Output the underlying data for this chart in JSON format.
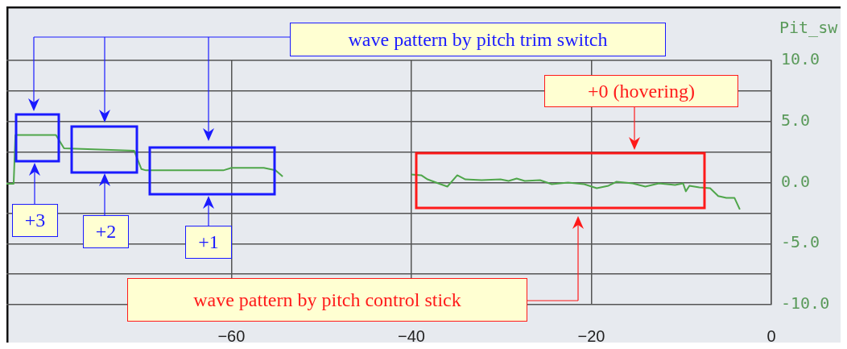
{
  "chart_data": {
    "type": "line",
    "ylabel": "Pit_sw",
    "x": [
      -85.0,
      -84.2,
      -84.0,
      -79.5,
      -78.6,
      -70.8,
      -70.0,
      -69.5,
      -60.9,
      -60.0,
      -56.4,
      -55.1,
      -54.3,
      -47,
      -40.0,
      -38.9,
      -38.2,
      -37.0,
      -36.0,
      -34.9,
      -34.0,
      -32.2,
      -30.1,
      -29.2,
      -28.3,
      -27.4,
      -25.7,
      -24.4,
      -22.6,
      -20.8,
      -19.4,
      -18.1,
      -17.2,
      -15.4,
      -14.0,
      -12.5,
      -10.7,
      -9.8,
      -9.5,
      -9.1,
      -8.0,
      -6.8,
      -5.9,
      -5.0,
      -4.1,
      -3.5
    ],
    "series": [
      {
        "color": "#4fa64a",
        "values": [
          -0.1,
          -0.1,
          3.9,
          3.9,
          2.8,
          2.6,
          1.1,
          1.0,
          1.0,
          1.2,
          1.2,
          1.0,
          0.5,
          null,
          0.66,
          0.6,
          0.26,
          -0.07,
          -0.33,
          0.6,
          0.26,
          0.2,
          0.26,
          0.13,
          0.33,
          0.13,
          0.2,
          -0.13,
          0,
          -0.13,
          -0.46,
          -0.26,
          0.07,
          -0.07,
          -0.33,
          -0.07,
          -0.2,
          -0.07,
          -0.72,
          -0.26,
          -0.4,
          -0.46,
          -1.1,
          -1.25,
          -1.25,
          -2.2
        ]
      }
    ],
    "xlim": [
      -85,
      0
    ],
    "xticks": [
      -60,
      -40,
      -20,
      0
    ],
    "ylim": [
      -10,
      10
    ],
    "yticks": [
      {
        "value": 10,
        "label": "10.0"
      },
      {
        "value": 7.5,
        "label": null
      },
      {
        "value": 5,
        "label": "5.0"
      },
      {
        "value": 2.5,
        "label": null
      },
      {
        "value": 0,
        "label": "0.0"
      },
      {
        "value": -2.5,
        "label": null
      },
      {
        "value": -5,
        "label": "-5.0"
      },
      {
        "value": -7.5,
        "label": null
      },
      {
        "value": -10,
        "label": "-10.0"
      }
    ],
    "grid": true,
    "marker": "none",
    "line_style": "solid",
    "legend": false,
    "annotations": [
      "wave pattern by pitch trim switch",
      "+3",
      "+2",
      "+1",
      "+0 (hovering)",
      "wave pattern by pitch control stick"
    ]
  }
}
